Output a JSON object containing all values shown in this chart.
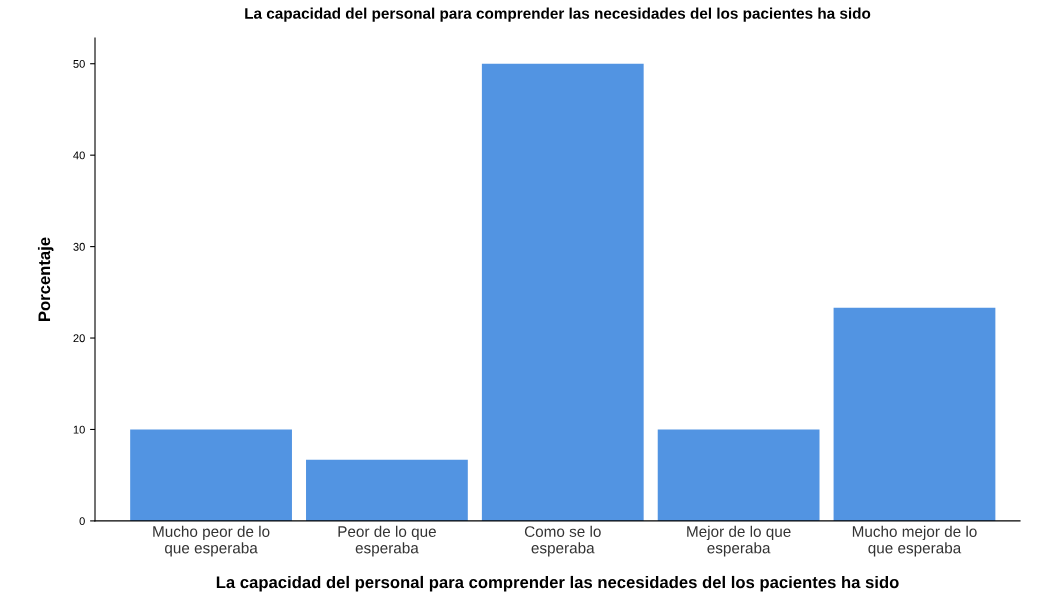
{
  "chart_data": {
    "type": "bar",
    "title": "La capacidad del personal para comprender las necesidades del los pacientes ha sido",
    "xlabel": "La capacidad del personal para comprender las necesidades del los pacientes ha sido",
    "ylabel": "Porcentaje",
    "categories": [
      "Mucho peor de lo\nque esperaba",
      "Peor de lo que\nesperaba",
      "Como se lo\nesperaba",
      "Mejor de lo que\nesperaba",
      "Mucho mejor de lo\nque esperaba"
    ],
    "values": [
      10,
      6.7,
      50,
      10,
      23.3
    ],
    "color": "#5294e2",
    "ylim": [
      0,
      52.8
    ],
    "yticks": [
      0,
      10,
      20,
      30,
      40,
      50
    ],
    "grid": false,
    "legend": false
  }
}
